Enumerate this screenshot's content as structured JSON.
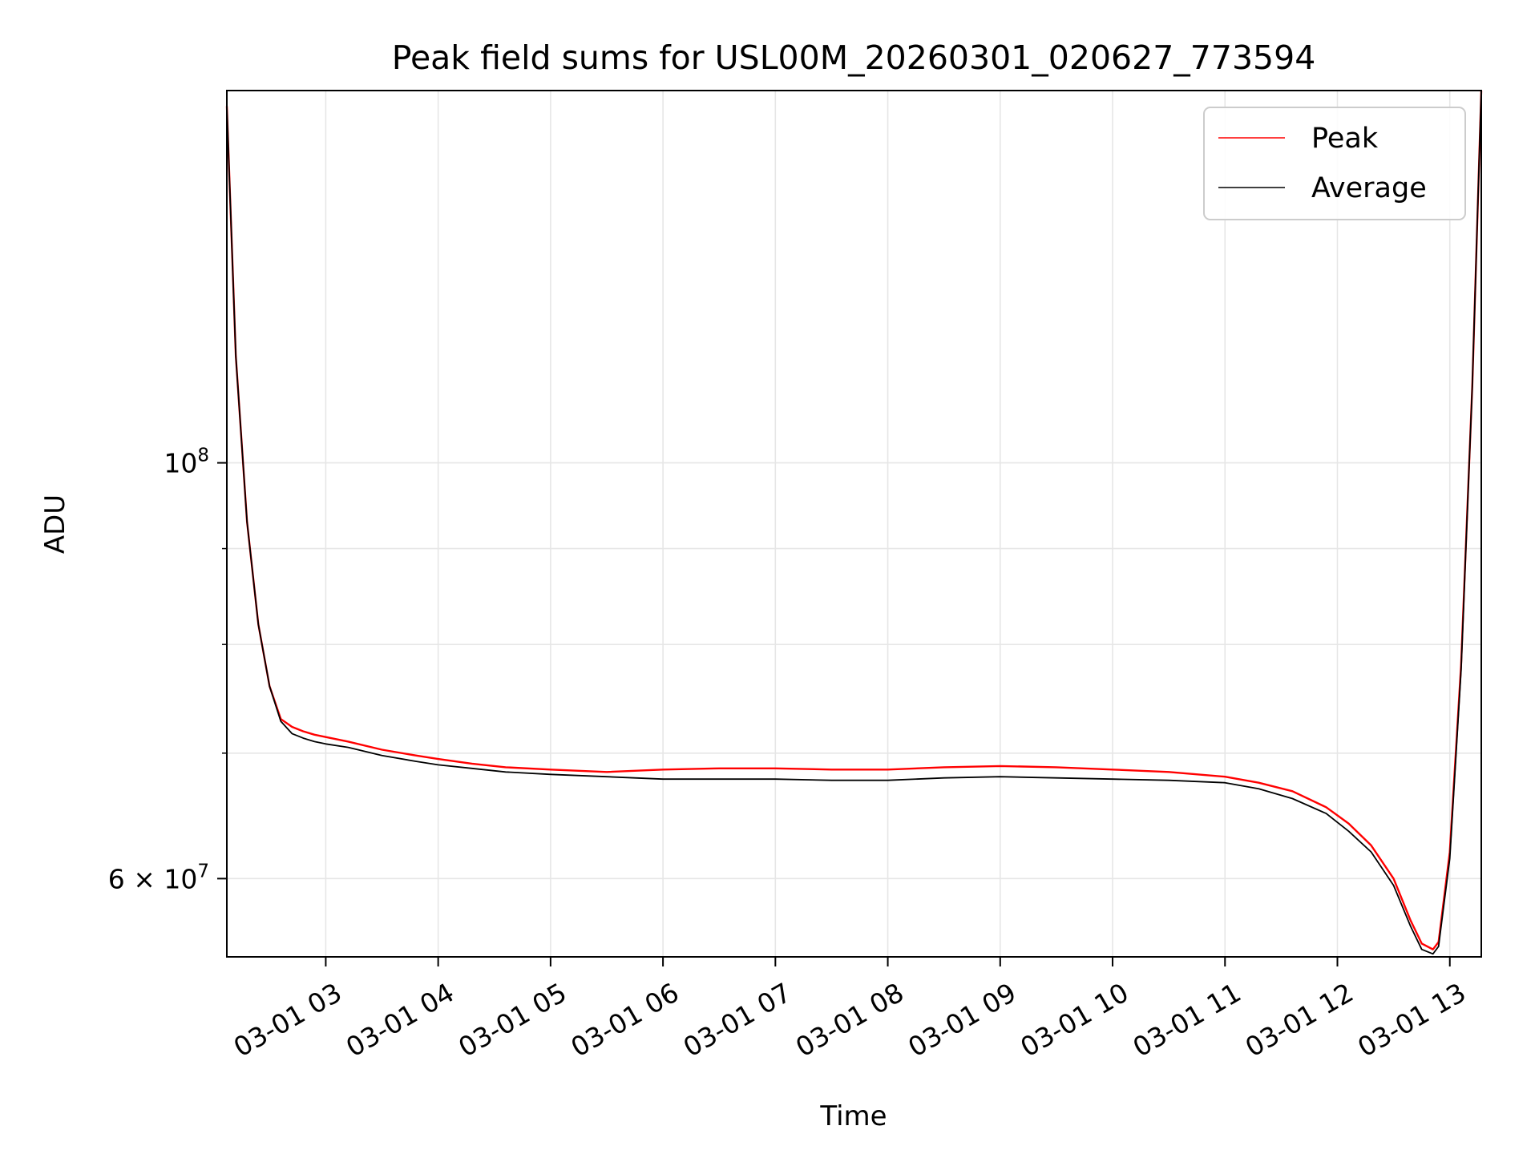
{
  "chart_data": {
    "type": "line",
    "title": "Peak field sums for USL00M_20260301_020627_773594",
    "xlabel": "Time",
    "ylabel": "ADU",
    "yscale": "log",
    "grid": true,
    "legend_position": "top-right",
    "xlim_hours": [
      2.12,
      13.28
    ],
    "ylim": [
      54500000,
      158000000
    ],
    "x_ticks": [
      {
        "hour": 3,
        "label": "03-01 03"
      },
      {
        "hour": 4,
        "label": "03-01 04"
      },
      {
        "hour": 5,
        "label": "03-01 05"
      },
      {
        "hour": 6,
        "label": "03-01 06"
      },
      {
        "hour": 7,
        "label": "03-01 07"
      },
      {
        "hour": 8,
        "label": "03-01 08"
      },
      {
        "hour": 9,
        "label": "03-01 09"
      },
      {
        "hour": 10,
        "label": "03-01 10"
      },
      {
        "hour": 11,
        "label": "03-01 11"
      },
      {
        "hour": 12,
        "label": "03-01 12"
      },
      {
        "hour": 13,
        "label": "03-01 13"
      }
    ],
    "y_major_ticks": [
      {
        "value": 100000000,
        "base": "10",
        "exp": "8"
      },
      {
        "value": 60000000,
        "mantissa": "6",
        "base": "10",
        "exp": "7"
      }
    ],
    "y_minor_ticks": [
      70000000,
      80000000,
      90000000
    ],
    "series": [
      {
        "name": "Peak",
        "color": "#ff0000",
        "x_hours": [
          2.12,
          2.2,
          2.3,
          2.4,
          2.5,
          2.6,
          2.7,
          2.8,
          2.9,
          3.0,
          3.2,
          3.5,
          3.8,
          4.0,
          4.3,
          4.6,
          5.0,
          5.5,
          6.0,
          6.5,
          7.0,
          7.5,
          8.0,
          8.5,
          9.0,
          9.5,
          10.0,
          10.5,
          11.0,
          11.3,
          11.6,
          11.9,
          12.1,
          12.3,
          12.5,
          12.65,
          12.75,
          12.85,
          12.9,
          13.0,
          13.1,
          13.2,
          13.28
        ],
        "values": [
          155000000,
          114000000,
          93000000,
          82000000,
          76000000,
          73000000,
          72300000,
          71900000,
          71600000,
          71400000,
          71000000,
          70300000,
          69800000,
          69500000,
          69100000,
          68800000,
          68600000,
          68400000,
          68600000,
          68700000,
          68700000,
          68600000,
          68600000,
          68800000,
          68900000,
          68800000,
          68600000,
          68400000,
          68000000,
          67500000,
          66800000,
          65500000,
          64200000,
          62500000,
          60000000,
          57000000,
          55400000,
          55000000,
          55500000,
          62000000,
          78000000,
          110000000,
          158000000
        ]
      },
      {
        "name": "Average",
        "color": "#000000",
        "x_hours": [
          2.12,
          2.2,
          2.3,
          2.4,
          2.5,
          2.6,
          2.7,
          2.8,
          2.9,
          3.0,
          3.2,
          3.5,
          3.8,
          4.0,
          4.3,
          4.6,
          5.0,
          5.5,
          6.0,
          6.5,
          7.0,
          7.5,
          8.0,
          8.5,
          9.0,
          9.5,
          10.0,
          10.5,
          11.0,
          11.3,
          11.6,
          11.9,
          12.1,
          12.3,
          12.5,
          12.65,
          12.75,
          12.85,
          12.9,
          13.0,
          13.1,
          13.2,
          13.28
        ],
        "values": [
          155000000,
          114000000,
          93000000,
          82000000,
          76000000,
          72800000,
          71700000,
          71300000,
          71000000,
          70800000,
          70500000,
          69800000,
          69300000,
          69000000,
          68700000,
          68400000,
          68200000,
          68000000,
          67800000,
          67800000,
          67800000,
          67700000,
          67700000,
          67900000,
          68000000,
          67900000,
          67800000,
          67700000,
          67500000,
          67000000,
          66200000,
          65000000,
          63600000,
          62000000,
          59500000,
          56600000,
          55000000,
          54700000,
          55200000,
          61500000,
          77500000,
          110000000,
          158000000
        ]
      }
    ]
  }
}
